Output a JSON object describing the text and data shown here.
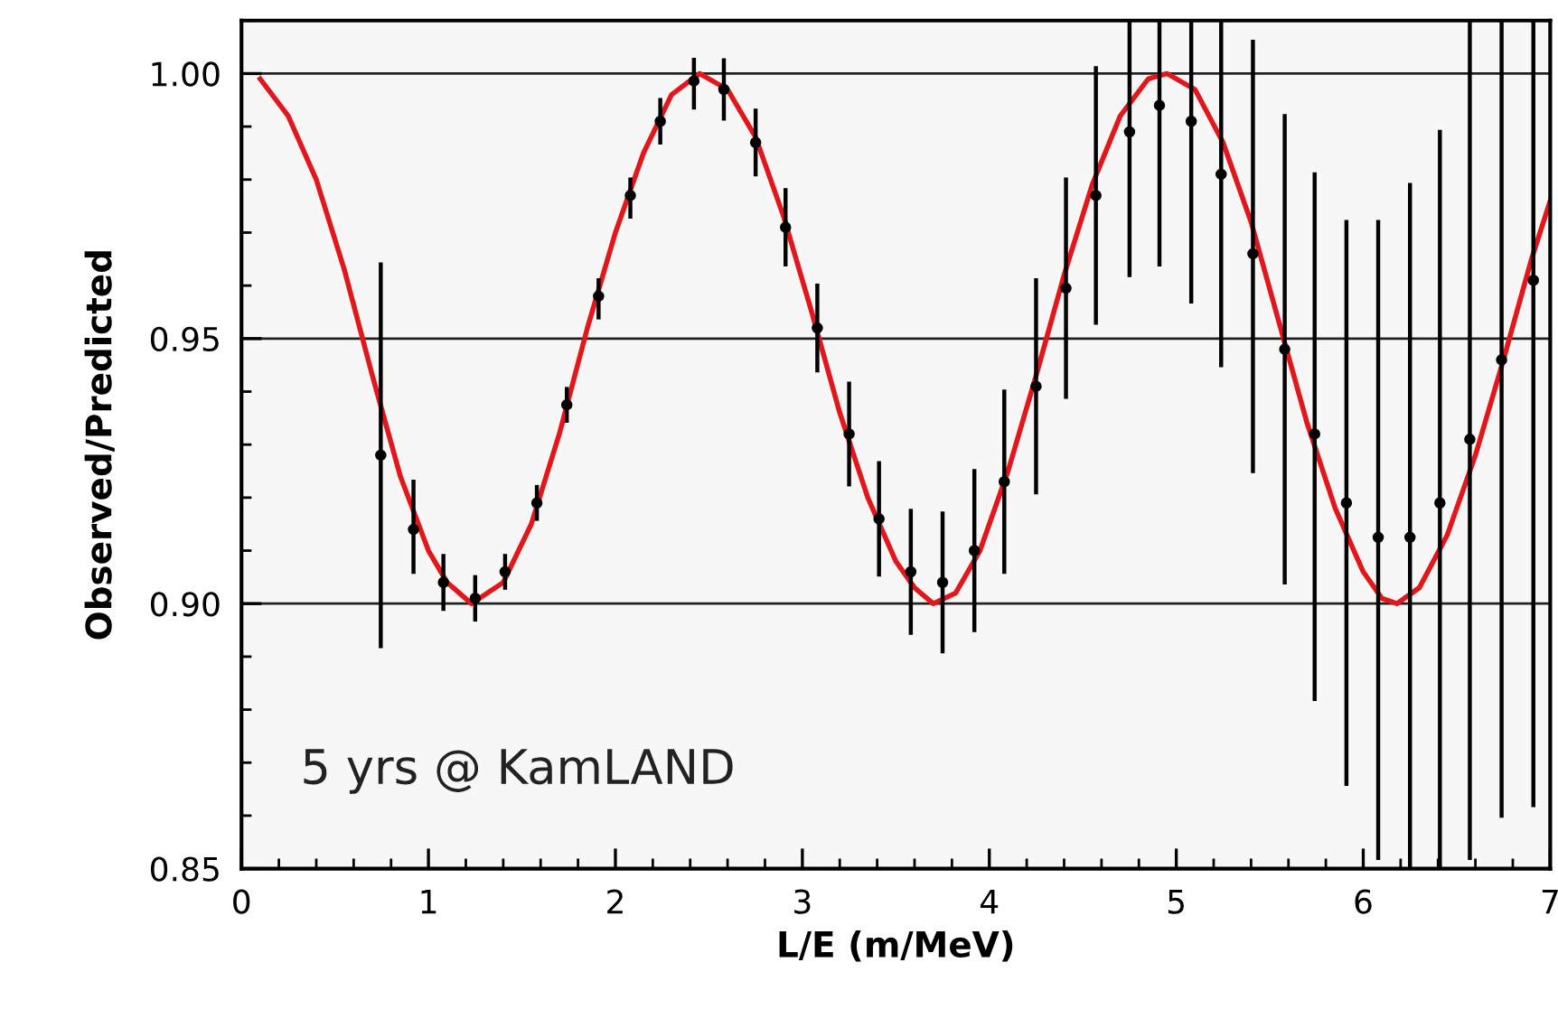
{
  "chart_data": {
    "type": "scatter",
    "xlabel": "L/E (m/MeV)",
    "ylabel": "Observed/Predicted",
    "annotations": [
      "5 yrs @ KamLAND"
    ],
    "xlim": [
      0,
      7
    ],
    "xticks": [
      0,
      1,
      2,
      3,
      4,
      5,
      6,
      7
    ],
    "ylim": [
      0.85,
      1.01
    ],
    "yticks": [
      {
        "value": 0.85,
        "label": "0.85"
      },
      {
        "value": 0.9,
        "label": "0.90"
      },
      {
        "value": 0.95,
        "label": "0.95"
      },
      {
        "value": 1.0,
        "label": "1.00"
      }
    ],
    "grid": "y",
    "legend": false,
    "series": [
      {
        "marker": "circle",
        "color": "#000000",
        "x": [
          0.745,
          0.92,
          1.08,
          1.25,
          1.41,
          1.58,
          1.74,
          1.91,
          2.08,
          2.24,
          2.42,
          2.58,
          2.75,
          2.91,
          3.08,
          3.25,
          3.41,
          3.58,
          3.75,
          3.92,
          4.08,
          4.25,
          4.41,
          4.57,
          4.75,
          4.91,
          5.08,
          5.24,
          5.41,
          5.58,
          5.74,
          5.91,
          6.08,
          6.25,
          6.41,
          6.57,
          6.74,
          6.91
        ],
        "values": [
          0.928,
          0.914,
          0.904,
          0.901,
          0.906,
          0.919,
          0.9375,
          0.958,
          0.977,
          0.991,
          0.9986,
          0.997,
          0.987,
          0.971,
          0.952,
          0.932,
          0.916,
          0.906,
          0.904,
          0.91,
          0.923,
          0.941,
          0.9595,
          0.977,
          0.989,
          0.994,
          0.991,
          0.981,
          0.966,
          0.948,
          0.932,
          0.919,
          0.9125,
          0.9125,
          0.919,
          0.931,
          0.946,
          0.961
        ],
        "errors": [
          [
            0.892,
            0.964
          ],
          [
            0.906,
            0.923
          ],
          [
            0.899,
            0.909
          ],
          [
            0.897,
            0.905
          ],
          [
            0.903,
            0.909
          ],
          [
            0.916,
            0.922
          ],
          [
            0.9345,
            0.9405
          ],
          [
            0.954,
            0.961
          ],
          [
            0.973,
            0.98
          ],
          [
            0.987,
            0.995
          ],
          [
            0.9936,
            1.0026
          ],
          [
            0.9915,
            1.0025
          ],
          [
            0.981,
            0.993
          ],
          [
            0.964,
            0.978
          ],
          [
            0.944,
            0.96
          ],
          [
            0.9225,
            0.9415
          ],
          [
            0.9055,
            0.9265
          ],
          [
            0.8945,
            0.9175
          ],
          [
            0.891,
            0.917
          ],
          [
            0.895,
            0.925
          ],
          [
            0.906,
            0.94
          ],
          [
            0.921,
            0.961
          ],
          [
            0.939,
            0.98
          ],
          [
            0.953,
            1.001
          ],
          [
            0.962,
            1.01
          ],
          [
            0.964,
            1.01
          ],
          [
            0.957,
            1.01
          ],
          [
            0.945,
            1.01
          ],
          [
            0.925,
            1.006
          ],
          [
            0.904,
            0.992
          ],
          [
            0.882,
            0.981
          ],
          [
            0.866,
            0.972
          ],
          [
            0.852,
            0.972
          ],
          [
            0.85,
            0.979
          ],
          [
            0.85,
            0.989
          ],
          [
            0.852,
            1.01
          ],
          [
            0.86,
            1.01
          ],
          [
            0.862,
            1.01
          ]
        ]
      },
      {
        "type": "line",
        "color": "#e3161b",
        "x": [
          0.1,
          0.25,
          0.4,
          0.55,
          0.7,
          0.85,
          1.0,
          1.1,
          1.23,
          1.4,
          1.55,
          1.7,
          1.85,
          2.0,
          2.15,
          2.3,
          2.45,
          2.6,
          2.75,
          2.9,
          3.05,
          3.2,
          3.35,
          3.5,
          3.6,
          3.7,
          3.82,
          3.95,
          4.1,
          4.25,
          4.4,
          4.55,
          4.7,
          4.85,
          4.95,
          5.1,
          5.25,
          5.4,
          5.55,
          5.7,
          5.85,
          6.0,
          6.1,
          6.18,
          6.3,
          6.45,
          6.6,
          6.75,
          6.9,
          7.0
        ],
        "values": [
          0.999,
          0.992,
          0.98,
          0.963,
          0.943,
          0.924,
          0.91,
          0.904,
          0.9,
          0.904,
          0.915,
          0.932,
          0.952,
          0.97,
          0.985,
          0.996,
          1.0,
          0.997,
          0.988,
          0.973,
          0.955,
          0.936,
          0.92,
          0.908,
          0.903,
          0.9,
          0.902,
          0.91,
          0.925,
          0.943,
          0.962,
          0.979,
          0.992,
          0.999,
          1.0,
          0.997,
          0.987,
          0.972,
          0.953,
          0.934,
          0.918,
          0.906,
          0.901,
          0.9,
          0.903,
          0.913,
          0.928,
          0.946,
          0.965,
          0.976
        ]
      }
    ]
  }
}
